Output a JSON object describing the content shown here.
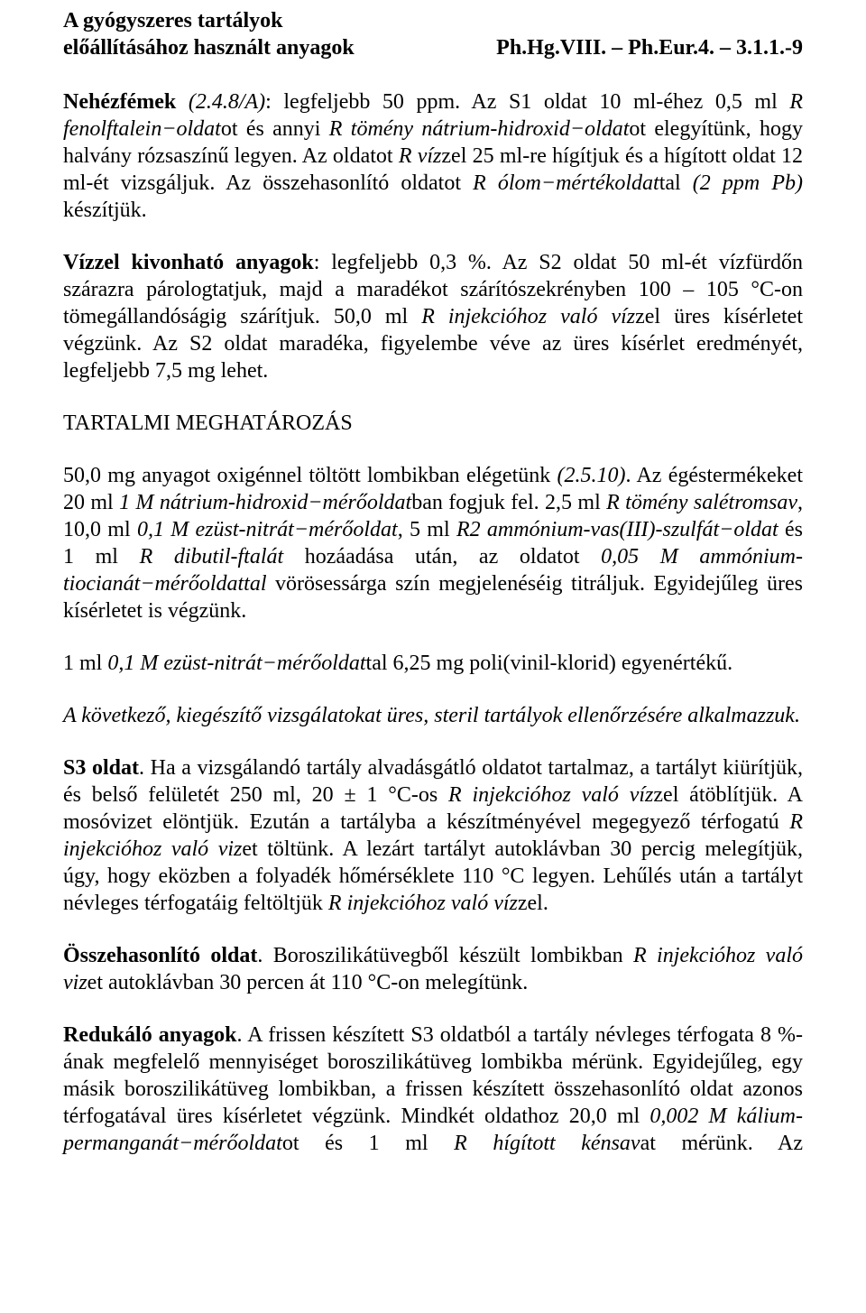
{
  "header": {
    "left1": "A gyógyszeres tartályok",
    "left2": "előállításához használt anyagok",
    "right": "Ph.Hg.VIII. – Ph.Eur.4. – 3.1.1.-9"
  },
  "paragraphs": {
    "p1": {
      "t1": "Nehézfémek ",
      "t2": "(2.4.8/A)",
      "t3": ": legfeljebb 50 ppm. Az S1 oldat 10 ml-éhez 0,5 ml ",
      "t4": "R fenolftalein−oldat",
      "t5": "ot és annyi ",
      "t6": "R tömény nátrium-hidroxid−oldat",
      "t7": "ot elegyítünk, hogy halvány rózsaszínű legyen. Az oldatot ",
      "t8": "R víz",
      "t9": "zel 25 ml-re hígítjuk és a hígított oldat 12 ml-ét vizsgáljuk. Az összehasonlító oldatot ",
      "t10": "R ólom−mértékoldat",
      "t11": "tal ",
      "t12": "(2 ppm Pb)",
      "t13": " készítjük."
    },
    "p2": {
      "t1": "Vízzel kivonható anyagok",
      "t2": ": legfeljebb 0,3 %. Az S2 oldat 50 ml-ét vízfürdőn szárazra párologtatjuk, majd a maradékot szárítószekrényben 100 – 105 °C-on tömegállandóságig szárítjuk. 50,0 ml ",
      "t3": "R injekcióhoz való víz",
      "t4": "zel üres kísérletet végzünk. Az S2 oldat maradéka, figyelembe véve az üres kísérlet eredményét, legfeljebb 7,5 mg lehet."
    },
    "p3": {
      "t1": "TARTALMI MEGHATÁROZÁS"
    },
    "p4": {
      "t1": "50,0 mg anyagot oxigénnel töltött lombikban elégetünk ",
      "t2": "(2.5.10)",
      "t3": ". Az égéstermékeket 20 ml ",
      "t4": "1 M nátrium-hidroxid−mérőoldat",
      "t5": "ban fogjuk fel. 2,5 ml ",
      "t6": "R tömény salétromsav",
      "t7": ", 10,0 ml ",
      "t8": "0,1 M ezüst-nitrát−mérőoldat",
      "t9": ", 5 ml ",
      "t10": "R2 ammónium-vas(III)-szulfát−oldat",
      "t11": " és 1 ml ",
      "t12": "R dibutil-ftalát",
      "t13": " hozáadása után, az oldatot ",
      "t14": "0,05 M ammónium-tiocianát−mérőoldattal",
      "t15": " vörösessárga szín megjelenéséig titráljuk. Egyidejűleg üres kísérletet is végzünk."
    },
    "p5": {
      "t1": "1 ml ",
      "t2": "0,1 M ezüst-nitrát−mérőoldat",
      "t3": "tal 6,25 mg poli(vinil-klorid) egyenértékű."
    },
    "p6": {
      "t1": "A következő, kiegészítő vizsgálatokat üres, steril tartályok ellenőrzésére alkalmazzuk."
    },
    "p7": {
      "t1": "S3 oldat",
      "t2": ". Ha a vizsgálandó tartály alvadásgátló oldatot tartalmaz, a tartályt kiürítjük, és belső felületét 250 ml, 20 ± 1 °C-os ",
      "t3": "R injekcióhoz való víz",
      "t4": "zel átöblítjük. A mosóvizet elöntjük. Ezután a tartályba a készítményével megegyező térfogatú ",
      "t5": "R injekcióhoz való viz",
      "t6": "et töltünk. A lezárt tartályt autoklávban 30 percig melegítjük, úgy, hogy eközben a folyadék hőmérséklete 110 °C legyen. Lehűlés után a tartályt névleges térfogatáig feltöltjük ",
      "t7": "R injekcióhoz való víz",
      "t8": "zel."
    },
    "p8": {
      "t1": "Összehasonlító oldat",
      "t2": ". Boroszilikátüvegből készült lombikban ",
      "t3": "R injekcióhoz való viz",
      "t4": "et autoklávban 30 percen át 110 °C-on melegítünk."
    },
    "p9": {
      "t1": "Redukáló anyagok",
      "t2": ". A frissen készített S3 oldatból a tartály névleges térfogata 8 %-ának megfelelő mennyiséget boroszilikátüveg lombikba mérünk. Egyidejűleg, egy másik boroszilikátüveg lombikban, a frissen készített összehasonlító oldat azonos térfogatával üres kísérletet végzünk. Mindkét oldathoz 20,0 ml ",
      "t3": "0,002 M kálium-permanganát−mérőoldat",
      "t4": "ot és 1 ml ",
      "t5": "R hígított kénsav",
      "t6": "at mérünk. Az"
    }
  }
}
